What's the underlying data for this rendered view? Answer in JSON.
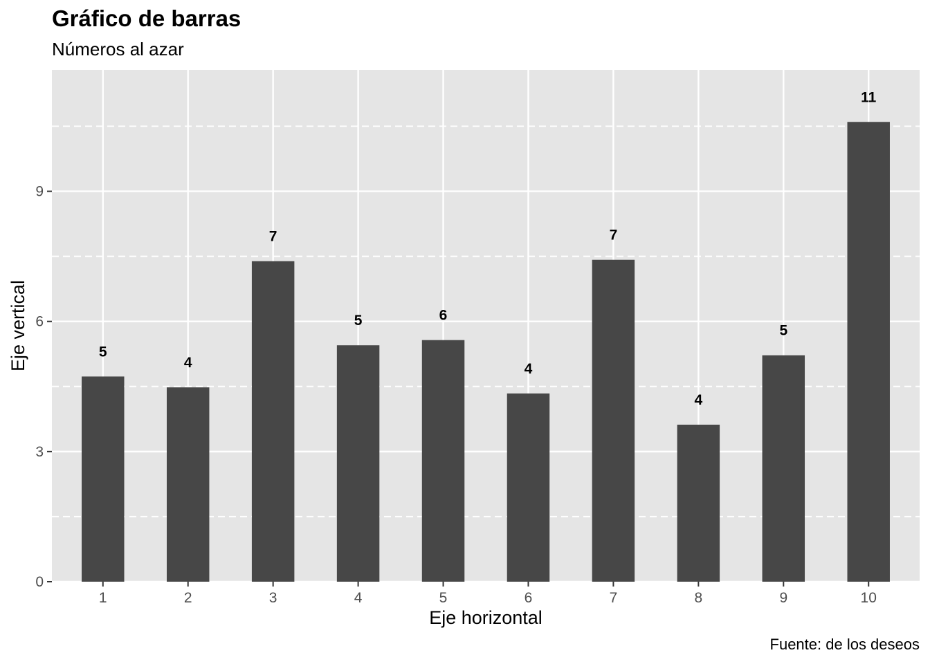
{
  "chart_data": {
    "type": "bar",
    "title": "Gráfico de barras",
    "subtitle": "Números al azar",
    "caption": "Fuente: de los deseos",
    "xlabel": "Eje horizontal",
    "ylabel": "Eje vertical",
    "categories": [
      "1",
      "2",
      "3",
      "4",
      "5",
      "6",
      "7",
      "8",
      "9",
      "10"
    ],
    "values": [
      4.73,
      4.48,
      7.39,
      5.45,
      5.57,
      4.34,
      7.42,
      3.62,
      5.22,
      10.6
    ],
    "value_labels": [
      "5",
      "4",
      "7",
      "5",
      "6",
      "4",
      "7",
      "4",
      "5",
      "11"
    ],
    "yticks": [
      0,
      3,
      6,
      9
    ],
    "ylim": [
      0,
      11.8
    ],
    "grid": true,
    "minor_grid_style": "dashed",
    "colors": {
      "bar": "#474747",
      "panel": "#e5e5e5",
      "grid": "#ffffff"
    }
  }
}
